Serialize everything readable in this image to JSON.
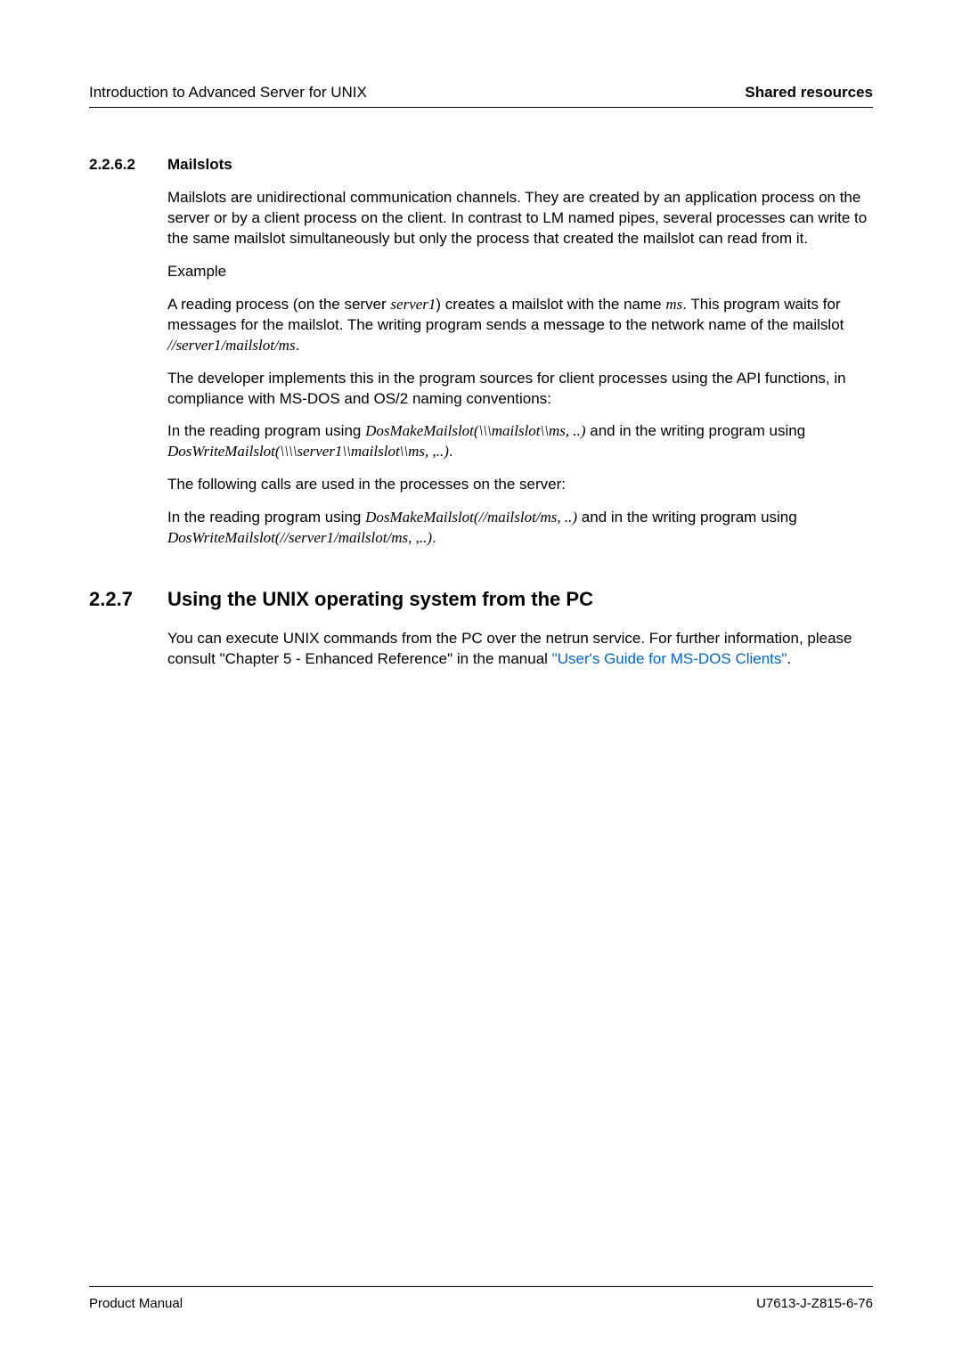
{
  "header": {
    "left": "Introduction to Advanced Server for UNIX",
    "right": "Shared resources"
  },
  "section1": {
    "number": "2.2.6.2",
    "title": "Mailslots",
    "p1": "Mailslots are unidirectional communication channels. They are created by an application process on the server or by a client process on the client. In contrast to LM named pipes, several processes can write to the same mailslot simultaneously but only the process that created the mailslot can read from it.",
    "example_label": "Example",
    "p2_a": "A reading process (on the server ",
    "p2_i1": "server1",
    "p2_b": ") creates a mailslot with the name ",
    "p2_i2": "ms",
    "p2_c": ". This program waits for messages for the mailslot. The writing program sends a message to the network name of the mailslot ",
    "p2_i3": "//server1/mailslot/ms",
    "p2_d": ".",
    "p3": "The developer implements this in the program sources for client processes using the API functions, in compliance with MS-DOS and OS/2 naming conventions:",
    "p4_a": "In the reading program using ",
    "p4_i1": "DosMakeMailslot(\\\\\\mailslot\\\\ms, ..)",
    "p4_b": " and in the writing program using ",
    "p4_i2": "DosWriteMailslot(\\\\\\\\server1\\\\mailslot\\\\ms, ,..)",
    "p4_c": ".",
    "p5": "The following calls are used in the processes on the server:",
    "p6_a": "In the reading program using ",
    "p6_i1": "DosMakeMailslot(//mailslot/ms, ..)",
    "p6_b": " and in the writing program using ",
    "p6_i2": "DosWriteMailslot(//server1/mailslot/ms, ,..)",
    "p6_c": "."
  },
  "section2": {
    "number": "2.2.7",
    "title": "Using the UNIX operating system from the PC",
    "p1_a": "You can execute UNIX commands from the PC over the netrun service. For further information, please consult \"Chapter 5 - Enhanced Reference\" in the manual ",
    "p1_link": "\"User's Guide for MS-DOS Clients\"",
    "p1_b": "."
  },
  "footer": {
    "left": "Product Manual",
    "right": "U7613-J-Z815-6-76"
  },
  "colors": {
    "text": "#000000",
    "link": "#0066cc",
    "background": "#ffffff"
  },
  "typography": {
    "body_fontsize": 17,
    "h2_fontsize": 22,
    "footer_fontsize": 15,
    "line_height": 1.35
  }
}
